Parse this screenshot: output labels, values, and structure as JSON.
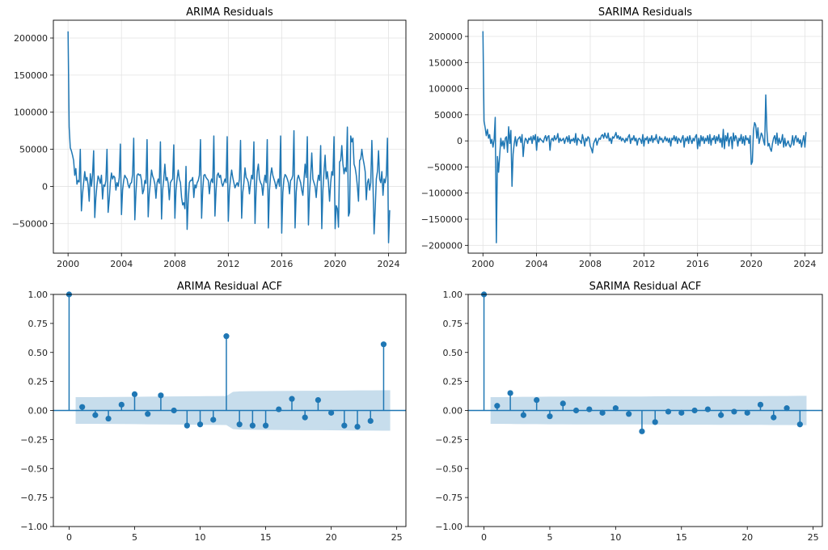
{
  "chart_data": [
    {
      "id": "arima_resid",
      "type": "line",
      "title": "ARIMA Residuals",
      "xlabel": "",
      "ylabel": "",
      "x_start": "2000-01",
      "x_step": "month",
      "xlim": [
        1998.9,
        2025.3
      ],
      "ylim": [
        -90000,
        224000
      ],
      "xticks": [
        2000,
        2004,
        2008,
        2012,
        2016,
        2020,
        2024
      ],
      "xtick_labels": [
        "2000",
        "2004",
        "2008",
        "2012",
        "2016",
        "2020",
        "2024"
      ],
      "yticks": [
        -50000,
        0,
        50000,
        100000,
        150000,
        200000
      ],
      "ytick_labels": [
        "−50000",
        "0",
        "50000",
        "100000",
        "150000",
        "200000"
      ],
      "grid": true,
      "color": "#1f77b4",
      "values": [
        209000,
        80000,
        52000,
        48000,
        42000,
        35000,
        15000,
        24000,
        3000,
        8000,
        6000,
        50000,
        -33000,
        -10000,
        5000,
        20000,
        8000,
        12000,
        2000,
        -20000,
        17000,
        0,
        15000,
        48000,
        -42000,
        -15000,
        2000,
        14000,
        10000,
        4000,
        15000,
        -17000,
        2000,
        0,
        8000,
        50000,
        -35000,
        -18000,
        5000,
        18000,
        10000,
        14000,
        12000,
        -5000,
        5000,
        0,
        12000,
        57000,
        -38000,
        -5000,
        8000,
        15000,
        12000,
        10000,
        2000,
        -2000,
        4000,
        5000,
        16000,
        65000,
        -45000,
        -8000,
        15000,
        17000,
        15000,
        16000,
        8000,
        -10000,
        -5000,
        8000,
        4000,
        63000,
        -41000,
        -10000,
        5000,
        22000,
        14000,
        10000,
        3000,
        -16000,
        5000,
        10000,
        4000,
        60000,
        -44000,
        -5000,
        10000,
        30000,
        8000,
        12000,
        4000,
        -18000,
        5000,
        8000,
        10000,
        56000,
        -43000,
        -5000,
        10000,
        22000,
        10000,
        5000,
        -15000,
        -25000,
        -22000,
        -30000,
        27000,
        -58000,
        -18000,
        5000,
        8000,
        8000,
        12000,
        -15000,
        2000,
        -2000,
        5000,
        8000,
        15000,
        63000,
        -43000,
        -5000,
        15000,
        16000,
        12000,
        10000,
        8000,
        -10000,
        5000,
        10000,
        5000,
        68000,
        -40000,
        -5000,
        15000,
        18000,
        12000,
        15000,
        5000,
        0,
        5000,
        10000,
        5000,
        67000,
        -47000,
        -5000,
        10000,
        22000,
        12000,
        5000,
        -2000,
        2000,
        5000,
        0,
        10000,
        62000,
        -43000,
        -8000,
        5000,
        25000,
        12000,
        10000,
        5000,
        -10000,
        5000,
        15000,
        10000,
        60000,
        -50000,
        -5000,
        20000,
        30000,
        10000,
        5000,
        2000,
        -12000,
        5000,
        15000,
        5000,
        63000,
        -56000,
        -5000,
        15000,
        25000,
        15000,
        10000,
        5000,
        -3000,
        5000,
        10000,
        0,
        68000,
        -63000,
        -8000,
        10000,
        16000,
        14000,
        10000,
        5000,
        -10000,
        8000,
        10000,
        15000,
        75000,
        -56000,
        -8000,
        10000,
        15000,
        10000,
        5000,
        -5000,
        -12000,
        8000,
        30000,
        12000,
        67000,
        -52000,
        -8000,
        15000,
        45000,
        10000,
        5000,
        0,
        -15000,
        5000,
        15000,
        8000,
        55000,
        -57000,
        -5000,
        20000,
        42000,
        10000,
        20000,
        5000,
        -20000,
        5000,
        20000,
        15000,
        67000,
        -57000,
        -26000,
        -30000,
        -55000,
        33000,
        35000,
        55000,
        30000,
        17000,
        25000,
        20000,
        80000,
        -40000,
        -35000,
        68000,
        60000,
        65000,
        30000,
        25000,
        15000,
        0,
        -20000,
        35000,
        37000,
        50000,
        38000,
        30000,
        20000,
        -18000,
        5000,
        10000,
        -5000,
        5000,
        62000,
        5000,
        -64000,
        -30000,
        10000,
        20000,
        48000,
        10000,
        5000,
        20000,
        -12000,
        10000,
        5000,
        15000,
        65000,
        -76000,
        -32000
      ]
    },
    {
      "id": "sarima_resid",
      "type": "line",
      "title": "SARIMA Residuals",
      "xlabel": "",
      "ylabel": "",
      "x_start": "2000-01",
      "x_step": "month",
      "xlim": [
        1998.9,
        2025.3
      ],
      "ylim": [
        -215000,
        231000
      ],
      "xticks": [
        2000,
        2004,
        2008,
        2012,
        2016,
        2020,
        2024
      ],
      "xtick_labels": [
        "2000",
        "2004",
        "2008",
        "2012",
        "2016",
        "2020",
        "2024"
      ],
      "yticks": [
        -200000,
        -150000,
        -100000,
        -50000,
        0,
        50000,
        100000,
        150000,
        200000
      ],
      "ytick_labels": [
        "−200000",
        "−150000",
        "−100000",
        "−50000",
        "0",
        "50000",
        "100000",
        "150000",
        "200000"
      ],
      "grid": true,
      "color": "#1f77b4",
      "values": [
        210000,
        38000,
        25000,
        10000,
        22000,
        5000,
        12000,
        -5000,
        3000,
        -12000,
        2000,
        45000,
        -195000,
        -30000,
        -60000,
        -28000,
        5000,
        -10000,
        0,
        -15000,
        5000,
        8000,
        -22000,
        27000,
        -5000,
        20000,
        -87000,
        -25000,
        -5000,
        8000,
        -10000,
        2000,
        5000,
        8000,
        -3000,
        12000,
        -30000,
        -5000,
        5000,
        2000,
        -5000,
        5000,
        2000,
        8000,
        -5000,
        10000,
        2000,
        12000,
        -18000,
        8000,
        -2000,
        5000,
        2000,
        0,
        -3000,
        5000,
        10000,
        0,
        8000,
        10000,
        -18000,
        2000,
        5000,
        0,
        10000,
        2000,
        5000,
        14000,
        -3000,
        5000,
        0,
        2000,
        5000,
        -5000,
        3000,
        8000,
        -2000,
        10000,
        -5000,
        3000,
        0,
        5000,
        -3000,
        14000,
        -8000,
        5000,
        2000,
        0,
        -5000,
        12000,
        3000,
        -10000,
        5000,
        0,
        8000,
        5000,
        -10000,
        -15000,
        -23000,
        -5000,
        0,
        5000,
        -8000,
        0,
        5000,
        3000,
        10000,
        12000,
        5000,
        15000,
        8000,
        5000,
        15000,
        0,
        5000,
        -5000,
        8000,
        5000,
        10000,
        16000,
        5000,
        10000,
        3000,
        8000,
        0,
        5000,
        2000,
        -3000,
        5000,
        0,
        8000,
        12000,
        -5000,
        5000,
        2000,
        10000,
        0,
        5000,
        -8000,
        3000,
        5000,
        2000,
        -5000,
        12000,
        -10000,
        5000,
        2000,
        8000,
        -5000,
        5000,
        0,
        10000,
        -3000,
        5000,
        2000,
        12000,
        0,
        -5000,
        8000,
        2000,
        5000,
        -3000,
        2000,
        8000,
        0,
        5000,
        -3000,
        5000,
        -10000,
        5000,
        2000,
        10000,
        0,
        8000,
        -5000,
        5000,
        2000,
        -3000,
        5000,
        10000,
        -12000,
        5000,
        0,
        8000,
        -5000,
        10000,
        2000,
        -5000,
        5000,
        0,
        8000,
        12000,
        -15000,
        5000,
        -10000,
        10000,
        0,
        8000,
        -5000,
        5000,
        0,
        10000,
        -5000,
        12000,
        -8000,
        5000,
        2000,
        10000,
        -5000,
        8000,
        0,
        12000,
        -3000,
        5000,
        -12000,
        22000,
        -15000,
        10000,
        0,
        15000,
        -10000,
        5000,
        8000,
        -15000,
        15000,
        0,
        10000,
        5000,
        -10000,
        5000,
        0,
        12000,
        -5000,
        8000,
        -8000,
        10000,
        2000,
        5000,
        -5000,
        10000,
        -45000,
        -40000,
        20000,
        35000,
        30000,
        5000,
        25000,
        -5000,
        5000,
        15000,
        10000,
        0,
        -8000,
        88000,
        20000,
        -10000,
        -5000,
        -15000,
        -20000,
        -5000,
        5000,
        10000,
        -5000,
        15000,
        -8000,
        5000,
        -5000,
        0,
        12000,
        -12000,
        5000,
        -10000,
        -5000,
        0,
        -8000,
        -12000,
        -5000,
        10000,
        -8000,
        5000,
        10000,
        -2000,
        5000,
        -5000,
        2000,
        -12000,
        0,
        10000,
        -12000,
        17000
      ]
    },
    {
      "id": "arima_acf",
      "type": "bar",
      "subtype": "stem",
      "title": "ARIMA Residual ACF",
      "xlabel": "",
      "ylabel": "",
      "xlim": [
        -1.2,
        25.7
      ],
      "ylim": [
        -1.0,
        1.0
      ],
      "xticks": [
        0,
        5,
        10,
        15,
        20,
        25
      ],
      "xtick_labels": [
        "0",
        "5",
        "10",
        "15",
        "20",
        "25"
      ],
      "yticks": [
        -1.0,
        -0.75,
        -0.5,
        -0.25,
        0.0,
        0.25,
        0.5,
        0.75,
        1.0
      ],
      "ytick_labels": [
        "−1.00",
        "−0.75",
        "−0.50",
        "−0.25",
        "0.00",
        "0.25",
        "0.50",
        "0.75",
        "1.00"
      ],
      "grid": false,
      "color": "#1f77b4",
      "lags": [
        0,
        1,
        2,
        3,
        4,
        5,
        6,
        7,
        8,
        9,
        10,
        11,
        12,
        13,
        14,
        15,
        16,
        17,
        18,
        19,
        20,
        21,
        22,
        23,
        24
      ],
      "values": [
        1.0,
        0.03,
        -0.04,
        -0.07,
        0.05,
        0.14,
        -0.03,
        0.13,
        0.0,
        -0.13,
        -0.12,
        -0.08,
        0.64,
        -0.12,
        -0.13,
        -0.13,
        0.01,
        0.1,
        -0.06,
        0.09,
        -0.02,
        -0.13,
        -0.14,
        -0.09,
        0.57
      ],
      "confidence_band": {
        "lags": [
          0.5,
          1,
          2,
          3,
          4,
          5,
          6,
          7,
          8,
          9,
          10,
          11,
          12,
          12.5,
          13,
          14,
          15,
          16,
          17,
          18,
          19,
          20,
          21,
          22,
          23,
          24,
          24.5
        ],
        "upper": [
          0.115,
          0.115,
          0.115,
          0.116,
          0.117,
          0.118,
          0.119,
          0.12,
          0.121,
          0.122,
          0.123,
          0.124,
          0.125,
          0.16,
          0.165,
          0.166,
          0.167,
          0.168,
          0.169,
          0.17,
          0.17,
          0.171,
          0.172,
          0.173,
          0.173,
          0.174,
          0.174
        ]
      }
    },
    {
      "id": "sarima_acf",
      "type": "bar",
      "subtype": "stem",
      "title": "SARIMA Residual ACF",
      "xlabel": "",
      "ylabel": "",
      "xlim": [
        -1.2,
        25.7
      ],
      "ylim": [
        -1.0,
        1.0
      ],
      "xticks": [
        0,
        5,
        10,
        15,
        20,
        25
      ],
      "xtick_labels": [
        "0",
        "5",
        "10",
        "15",
        "20",
        "25"
      ],
      "yticks": [
        -1.0,
        -0.75,
        -0.5,
        -0.25,
        0.0,
        0.25,
        0.5,
        0.75,
        1.0
      ],
      "ytick_labels": [
        "−1.00",
        "−0.75",
        "−0.50",
        "−0.25",
        "0.00",
        "0.25",
        "0.50",
        "0.75",
        "1.00"
      ],
      "grid": false,
      "color": "#1f77b4",
      "lags": [
        0,
        1,
        2,
        3,
        4,
        5,
        6,
        7,
        8,
        9,
        10,
        11,
        12,
        13,
        14,
        15,
        16,
        17,
        18,
        19,
        20,
        21,
        22,
        23,
        24
      ],
      "values": [
        1.0,
        0.04,
        0.15,
        -0.04,
        0.09,
        -0.05,
        0.06,
        0.0,
        0.01,
        -0.02,
        0.02,
        -0.03,
        -0.18,
        -0.1,
        -0.01,
        -0.02,
        0.0,
        0.01,
        -0.04,
        -0.01,
        -0.02,
        0.05,
        -0.06,
        0.02,
        -0.12
      ],
      "confidence_band": {
        "lags": [
          0.5,
          1,
          2,
          3,
          4,
          5,
          6,
          7,
          8,
          9,
          10,
          11,
          12,
          13,
          14,
          15,
          16,
          17,
          18,
          19,
          20,
          21,
          22,
          23,
          24,
          24.5
        ],
        "upper": [
          0.115,
          0.115,
          0.116,
          0.118,
          0.118,
          0.119,
          0.119,
          0.12,
          0.12,
          0.12,
          0.12,
          0.12,
          0.12,
          0.122,
          0.123,
          0.123,
          0.123,
          0.123,
          0.124,
          0.124,
          0.124,
          0.124,
          0.125,
          0.125,
          0.126,
          0.126
        ]
      }
    }
  ]
}
